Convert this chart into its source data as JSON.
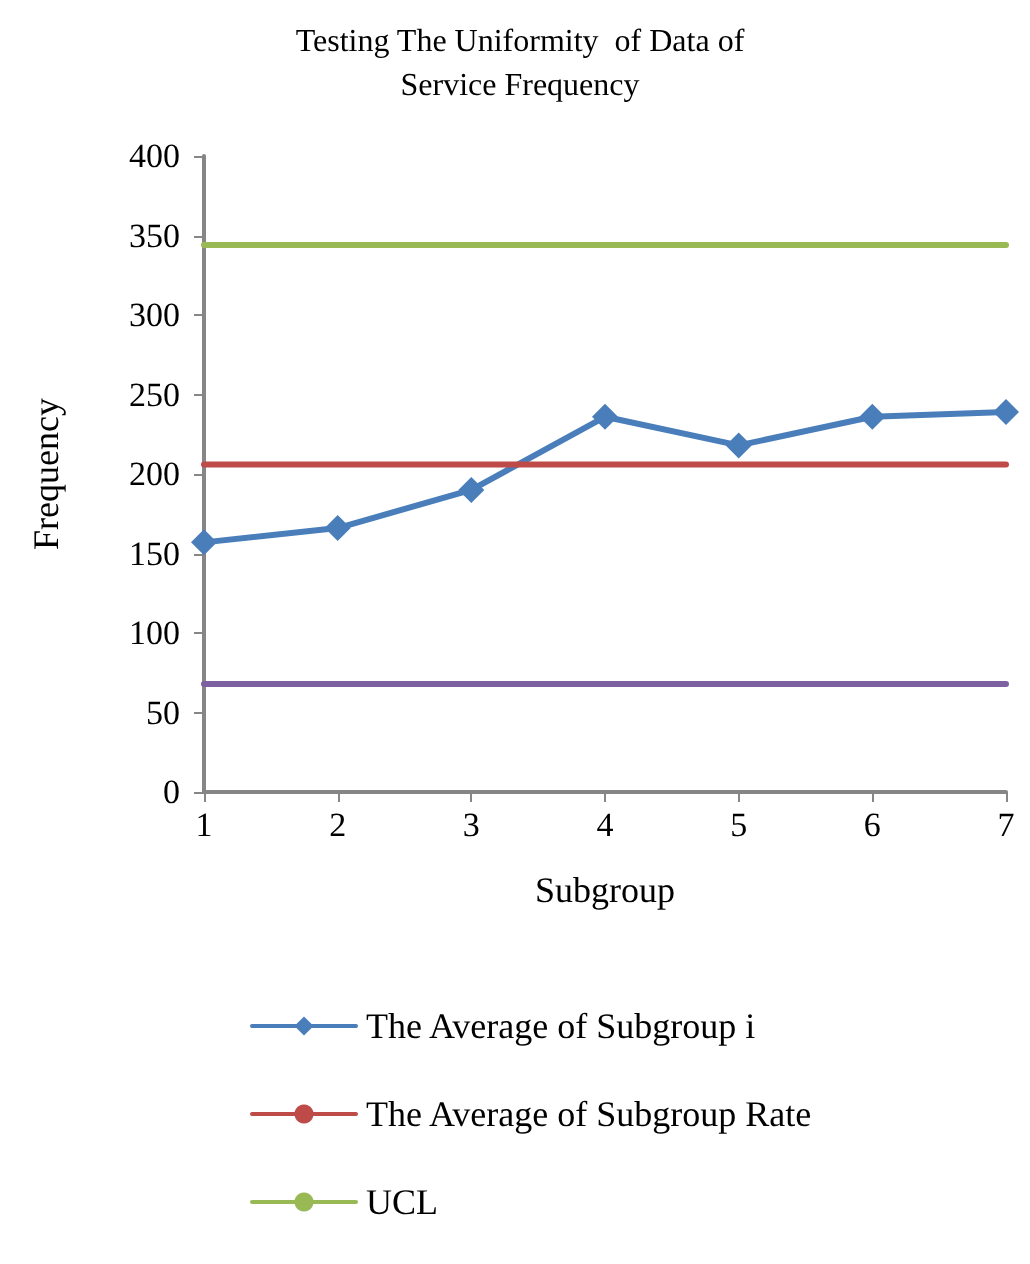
{
  "chart_data": {
    "type": "line",
    "title": "Testing The Uniformity  of Data of\nService Frequency",
    "xlabel": "Subgroup",
    "ylabel": "Frequency",
    "categories": [
      "1",
      "2",
      "3",
      "4",
      "5",
      "6",
      "7"
    ],
    "series": [
      {
        "name": "The Average of Subgroup i",
        "color": "#4a7ebb",
        "marker": "diamond",
        "values": [
          157,
          166,
          190,
          236,
          218,
          236,
          239
        ]
      },
      {
        "name": "The Average of Subgroup Rate",
        "color": "#be4b48",
        "marker": "none",
        "values": [
          206,
          206,
          206,
          206,
          206,
          206,
          206
        ]
      },
      {
        "name": "UCL",
        "color": "#98b954",
        "marker": "none",
        "values": [
          344,
          344,
          344,
          344,
          344,
          344,
          344
        ]
      },
      {
        "color": "#7d60a0",
        "marker": "none",
        "values": [
          68,
          68,
          68,
          68,
          68,
          68,
          68
        ]
      }
    ],
    "ylim": [
      0,
      400
    ],
    "yticks": [
      0,
      50,
      100,
      150,
      200,
      250,
      300,
      350,
      400
    ],
    "grid": false,
    "legend": "bottom",
    "line_style": "solid"
  }
}
